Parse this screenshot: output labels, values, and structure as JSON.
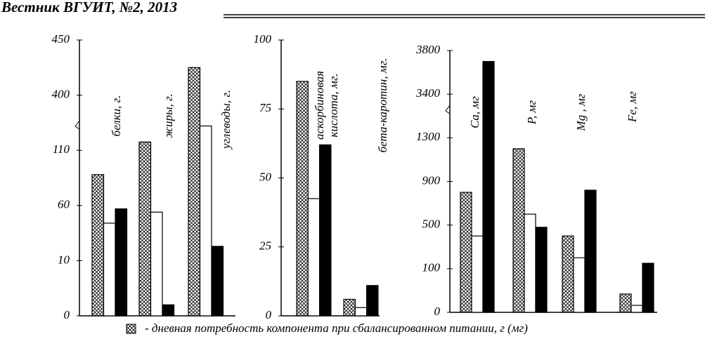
{
  "header": {
    "title": "Вестник ВГУИТ, №2, 2013"
  },
  "chart_data": [
    {
      "type": "bar",
      "categories": [
        "белки, г.",
        "жиры, г.",
        "углеводы, г."
      ],
      "series": [
        {
          "name": "- дневная потребность компонента при сбалансированном питании, г (мг)",
          "color": "#ffffff",
          "hatch": true,
          "values": [
            88,
            154,
            425
          ]
        },
        {
          "color": "#ffffff",
          "values": [
            44,
            54,
            238
          ]
        },
        {
          "color": "#000000",
          "values": [
            57,
            2,
            23
          ]
        }
      ],
      "ylim": [
        0,
        450
      ],
      "yticks": [
        0,
        10,
        60,
        110,
        400,
        450
      ],
      "axis_break": true
    },
    {
      "type": "bar",
      "categories": [
        "аскорбиновая кислота, мг.",
        "бета-каротин, мг."
      ],
      "series": [
        {
          "color": "#ffffff",
          "hatch": true,
          "values": [
            85,
            6
          ]
        },
        {
          "color": "#ffffff",
          "values": [
            42.5,
            3
          ]
        },
        {
          "color": "#000000",
          "values": [
            62,
            11
          ]
        }
      ],
      "ylim": [
        0,
        100
      ],
      "yticks": [
        0,
        25,
        50,
        75,
        100
      ],
      "axis_break": false
    },
    {
      "type": "bar",
      "categories": [
        "Ca, мг",
        "P, мг",
        "Mg , мг",
        "Fe, мг"
      ],
      "series": [
        {
          "color": "#ffffff",
          "hatch": true,
          "values": [
            800,
            1200,
            400,
            42
          ]
        },
        {
          "color": "#ffffff",
          "values": [
            400,
            600,
            200,
            16
          ]
        },
        {
          "color": "#000000",
          "values": [
            3700,
            480,
            820,
            150
          ]
        }
      ],
      "ylim": [
        0,
        3800
      ],
      "yticks": [
        0,
        100,
        500,
        900,
        1300,
        3400,
        3800
      ],
      "axis_break": true
    }
  ]
}
